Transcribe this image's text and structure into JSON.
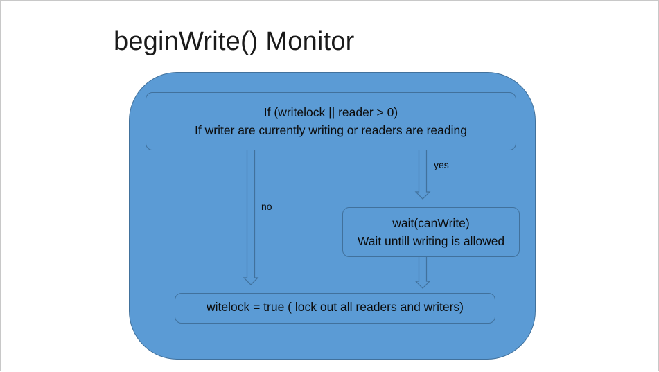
{
  "slide": {
    "title": "beginWrite() Monitor"
  },
  "diagram": {
    "condition_box": {
      "line1": "If (writelock || reader > 0)",
      "line2": "If writer are currently  writing or readers are reading"
    },
    "wait_box": {
      "line1": "wait(canWrite)",
      "line2": "Wait untill writing is allowed"
    },
    "lock_box": {
      "text": "witelock = true ( lock out all readers and writers)"
    },
    "edges": {
      "yes_label": "yes",
      "no_label": "no"
    },
    "colors": {
      "fill": "#5b9bd5",
      "stroke": "#41719c"
    }
  }
}
